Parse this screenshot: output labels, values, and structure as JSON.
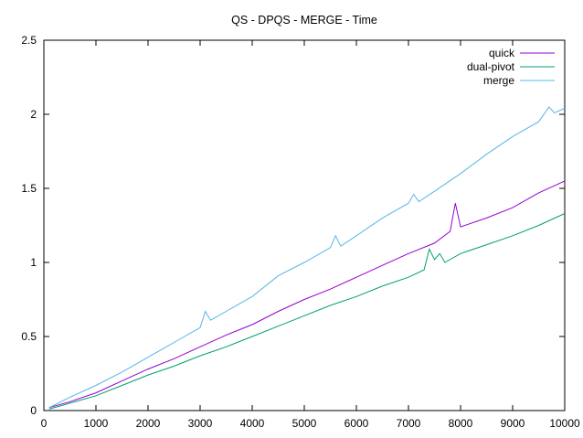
{
  "chart_data": {
    "type": "line",
    "title": "QS - DPQS - MERGE - Time",
    "xlabel": "",
    "ylabel": "",
    "xlim": [
      0,
      10000
    ],
    "ylim": [
      0,
      2.5
    ],
    "grid": false,
    "legend_position": "top-right",
    "x_ticks": [
      0,
      1000,
      2000,
      3000,
      4000,
      5000,
      6000,
      7000,
      8000,
      9000,
      10000
    ],
    "x_tick_labels": [
      "0",
      "1000",
      "2000",
      "3000",
      "4000",
      "5000",
      "6000",
      "7000",
      "8000",
      "9000",
      "10000"
    ],
    "y_ticks": [
      0,
      0.5,
      1,
      1.5,
      2,
      2.5
    ],
    "y_tick_labels": [
      "0",
      "0.5",
      "1",
      "1.5",
      "2",
      "2.5"
    ],
    "series": [
      {
        "name": "quick",
        "color": "#9400d3",
        "points": [
          [
            100,
            0.02
          ],
          [
            500,
            0.06
          ],
          [
            1000,
            0.12
          ],
          [
            1500,
            0.2
          ],
          [
            2000,
            0.28
          ],
          [
            2500,
            0.35
          ],
          [
            3000,
            0.43
          ],
          [
            3500,
            0.51
          ],
          [
            4000,
            0.58
          ],
          [
            4500,
            0.67
          ],
          [
            5000,
            0.75
          ],
          [
            5500,
            0.82
          ],
          [
            6000,
            0.9
          ],
          [
            6500,
            0.98
          ],
          [
            7000,
            1.06
          ],
          [
            7500,
            1.13
          ],
          [
            7800,
            1.21
          ],
          [
            7900,
            1.4
          ],
          [
            8000,
            1.24
          ],
          [
            8500,
            1.3
          ],
          [
            9000,
            1.37
          ],
          [
            9500,
            1.47
          ],
          [
            10000,
            1.55
          ]
        ]
      },
      {
        "name": "dual-pivot",
        "color": "#009e73",
        "points": [
          [
            100,
            0.01
          ],
          [
            500,
            0.05
          ],
          [
            1000,
            0.1
          ],
          [
            1500,
            0.17
          ],
          [
            2000,
            0.24
          ],
          [
            2500,
            0.3
          ],
          [
            3000,
            0.37
          ],
          [
            3500,
            0.43
          ],
          [
            4000,
            0.5
          ],
          [
            4500,
            0.57
          ],
          [
            5000,
            0.64
          ],
          [
            5500,
            0.71
          ],
          [
            6000,
            0.77
          ],
          [
            6500,
            0.84
          ],
          [
            7000,
            0.9
          ],
          [
            7300,
            0.95
          ],
          [
            7400,
            1.09
          ],
          [
            7500,
            1.02
          ],
          [
            7600,
            1.06
          ],
          [
            7700,
            1.0
          ],
          [
            8000,
            1.06
          ],
          [
            8500,
            1.12
          ],
          [
            9000,
            1.18
          ],
          [
            9500,
            1.25
          ],
          [
            10000,
            1.33
          ]
        ]
      },
      {
        "name": "merge",
        "color": "#56b4e9",
        "points": [
          [
            100,
            0.02
          ],
          [
            500,
            0.09
          ],
          [
            1000,
            0.17
          ],
          [
            1500,
            0.26
          ],
          [
            2000,
            0.36
          ],
          [
            2500,
            0.46
          ],
          [
            3000,
            0.56
          ],
          [
            3100,
            0.67
          ],
          [
            3200,
            0.61
          ],
          [
            3500,
            0.67
          ],
          [
            4000,
            0.77
          ],
          [
            4500,
            0.91
          ],
          [
            5000,
            1.0
          ],
          [
            5500,
            1.1
          ],
          [
            5600,
            1.18
          ],
          [
            5700,
            1.11
          ],
          [
            6000,
            1.18
          ],
          [
            6500,
            1.3
          ],
          [
            7000,
            1.4
          ],
          [
            7100,
            1.46
          ],
          [
            7200,
            1.41
          ],
          [
            7500,
            1.48
          ],
          [
            8000,
            1.6
          ],
          [
            8500,
            1.73
          ],
          [
            9000,
            1.85
          ],
          [
            9500,
            1.95
          ],
          [
            9700,
            2.05
          ],
          [
            9800,
            2.01
          ],
          [
            10000,
            2.04
          ]
        ]
      }
    ]
  }
}
